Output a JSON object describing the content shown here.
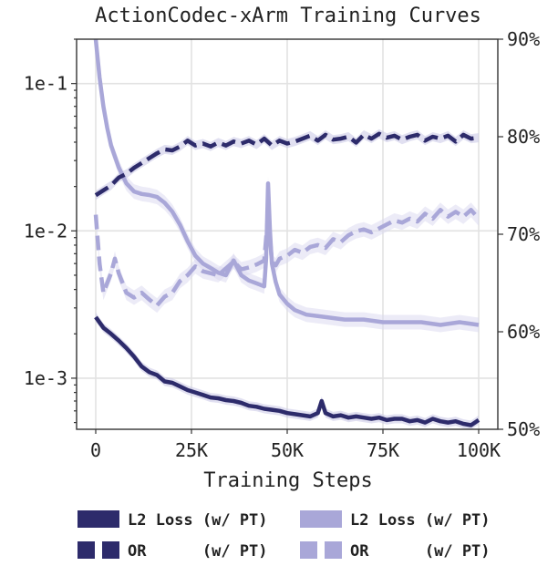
{
  "chart_data": {
    "type": "line",
    "title": "ActionCodec-xArm Training Curves",
    "xlabel": "Training Steps",
    "x_ticks": [
      0,
      25000,
      50000,
      75000,
      100000
    ],
    "x_tick_labels": [
      "0",
      "25K",
      "50K",
      "75K",
      "100K"
    ],
    "xlim": [
      -5000,
      105000
    ],
    "left_axis": {
      "scale": "log",
      "ylim": [
        0.00045,
        0.2
      ],
      "ticks": [
        0.1,
        0.01,
        0.001
      ],
      "tick_labels": [
        "1e-1",
        "1e-2",
        "1e-3"
      ]
    },
    "right_axis": {
      "scale": "linear",
      "ylim": [
        50,
        90
      ],
      "ticks": [
        50,
        60,
        70,
        80,
        90
      ],
      "tick_labels": [
        "50%",
        "60%",
        "70%",
        "80%",
        "90%"
      ]
    },
    "grid": true,
    "legend_position": "below",
    "colors": {
      "dark": "#2d2b6b",
      "light": "#a9a7d8",
      "band_dark": "#c8c7e6",
      "band_light": "#d9d8f0"
    },
    "series": [
      {
        "name": "L2 Loss (w/ PT)",
        "axis": "left",
        "color": "dark",
        "style": "solid",
        "x": [
          0,
          2000,
          4000,
          6000,
          8000,
          10000,
          12000,
          14000,
          16000,
          18000,
          20000,
          22000,
          24000,
          26000,
          28000,
          30000,
          32000,
          34000,
          36000,
          38000,
          40000,
          42000,
          44000,
          46000,
          48000,
          50000,
          52000,
          54000,
          56000,
          58000,
          59000,
          60000,
          62000,
          64000,
          66000,
          68000,
          70000,
          72000,
          74000,
          76000,
          78000,
          80000,
          82000,
          84000,
          86000,
          88000,
          90000,
          92000,
          94000,
          96000,
          98000,
          100000
        ],
        "y": [
          0.0026,
          0.0022,
          0.002,
          0.0018,
          0.0016,
          0.0014,
          0.0012,
          0.0011,
          0.00105,
          0.00095,
          0.00093,
          0.00088,
          0.00083,
          0.0008,
          0.00077,
          0.00074,
          0.00073,
          0.00071,
          0.0007,
          0.00068,
          0.00065,
          0.00064,
          0.00062,
          0.00061,
          0.0006,
          0.00058,
          0.00057,
          0.00056,
          0.00055,
          0.00058,
          0.0007,
          0.00058,
          0.00055,
          0.00056,
          0.00054,
          0.00055,
          0.00054,
          0.00053,
          0.00054,
          0.00052,
          0.00053,
          0.00053,
          0.00051,
          0.00052,
          0.0005,
          0.00053,
          0.00051,
          0.0005,
          0.00051,
          0.00049,
          0.00048,
          0.00052
        ]
      },
      {
        "name": "L2 Loss (w/ PT)",
        "axis": "left",
        "color": "light",
        "style": "solid",
        "x": [
          0,
          1000,
          2000,
          3000,
          4000,
          6000,
          8000,
          10000,
          12000,
          14000,
          16000,
          18000,
          20000,
          22000,
          24000,
          26000,
          28000,
          30000,
          32000,
          34000,
          36000,
          38000,
          40000,
          42000,
          44000,
          44500,
          45000,
          45500,
          46000,
          47000,
          48000,
          50000,
          52000,
          55000,
          60000,
          65000,
          70000,
          75000,
          80000,
          85000,
          90000,
          95000,
          100000
        ],
        "y": [
          0.2,
          0.11,
          0.07,
          0.05,
          0.038,
          0.027,
          0.021,
          0.0185,
          0.0178,
          0.0175,
          0.017,
          0.0155,
          0.0135,
          0.011,
          0.0085,
          0.0068,
          0.006,
          0.0056,
          0.0052,
          0.005,
          0.0063,
          0.005,
          0.0046,
          0.0044,
          0.0042,
          0.0065,
          0.021,
          0.01,
          0.006,
          0.0045,
          0.0037,
          0.0032,
          0.0029,
          0.0027,
          0.0026,
          0.0025,
          0.0025,
          0.0024,
          0.0024,
          0.0024,
          0.0023,
          0.0024,
          0.0023
        ]
      },
      {
        "name": "OR (w/ PT)",
        "axis": "right",
        "color": "dark",
        "style": "dashed",
        "x": [
          0,
          2000,
          4000,
          6000,
          8000,
          10000,
          12000,
          14000,
          16000,
          18000,
          20000,
          22000,
          24000,
          26000,
          28000,
          30000,
          32000,
          34000,
          36000,
          38000,
          40000,
          42000,
          44000,
          46000,
          48000,
          50000,
          52000,
          54000,
          56000,
          58000,
          60000,
          62000,
          64000,
          66000,
          68000,
          70000,
          72000,
          74000,
          76000,
          78000,
          80000,
          82000,
          84000,
          86000,
          88000,
          90000,
          92000,
          94000,
          96000,
          98000,
          100000
        ],
        "y": [
          74,
          74.5,
          75,
          75.8,
          76.2,
          76.8,
          77.3,
          77.8,
          78.3,
          78.7,
          78.6,
          79,
          79.6,
          79.1,
          79.3,
          79,
          79.4,
          79.1,
          79.5,
          79.3,
          79.6,
          79.2,
          79.8,
          79.1,
          79.6,
          79.3,
          79.5,
          79.8,
          80.1,
          79.6,
          80.2,
          79.7,
          79.8,
          80,
          79.4,
          80.2,
          79.8,
          80.3,
          79.9,
          80.1,
          79.7,
          80,
          80.2,
          79.6,
          80,
          79.8,
          80.1,
          79.5,
          80.2,
          79.8,
          79.9
        ]
      },
      {
        "name": "OR (w/ PT)",
        "axis": "right",
        "color": "light",
        "style": "dashed",
        "x": [
          0,
          1000,
          2000,
          3000,
          4000,
          5000,
          6000,
          8000,
          10000,
          12000,
          14000,
          16000,
          18000,
          20000,
          22000,
          24000,
          26000,
          28000,
          30000,
          32000,
          34000,
          36000,
          38000,
          40000,
          42000,
          44000,
          45000,
          46000,
          47000,
          48000,
          50000,
          52000,
          54000,
          56000,
          58000,
          60000,
          62000,
          64000,
          66000,
          68000,
          70000,
          72000,
          74000,
          76000,
          78000,
          80000,
          82000,
          84000,
          86000,
          88000,
          90000,
          92000,
          94000,
          96000,
          98000,
          100000
        ],
        "y": [
          72,
          67,
          64,
          65,
          66,
          67.5,
          66,
          64,
          63.5,
          64,
          63.3,
          62.7,
          63.6,
          64,
          65.2,
          65.8,
          66.7,
          66.2,
          66,
          65.8,
          66.5,
          67.2,
          66.4,
          66.6,
          66.9,
          67.3,
          72,
          67.2,
          66.8,
          67.5,
          67.8,
          68.4,
          68.1,
          68.7,
          68.9,
          68.6,
          69.5,
          69.2,
          69.9,
          70.3,
          70.5,
          70.2,
          70.6,
          71,
          71.4,
          71.2,
          71.6,
          71.3,
          72.1,
          71.6,
          72.5,
          71.8,
          72.3,
          71.8,
          72.5,
          71.6
        ]
      }
    ],
    "legend": [
      {
        "label": "L2 Loss (w/ PT)",
        "color": "dark",
        "style": "solid"
      },
      {
        "label": "L2 Loss (w/ PT)",
        "color": "light",
        "style": "solid"
      },
      {
        "label": "OR      (w/ PT)",
        "color": "dark",
        "style": "dashed"
      },
      {
        "label": "OR      (w/ PT)",
        "color": "light",
        "style": "dashed"
      }
    ]
  }
}
